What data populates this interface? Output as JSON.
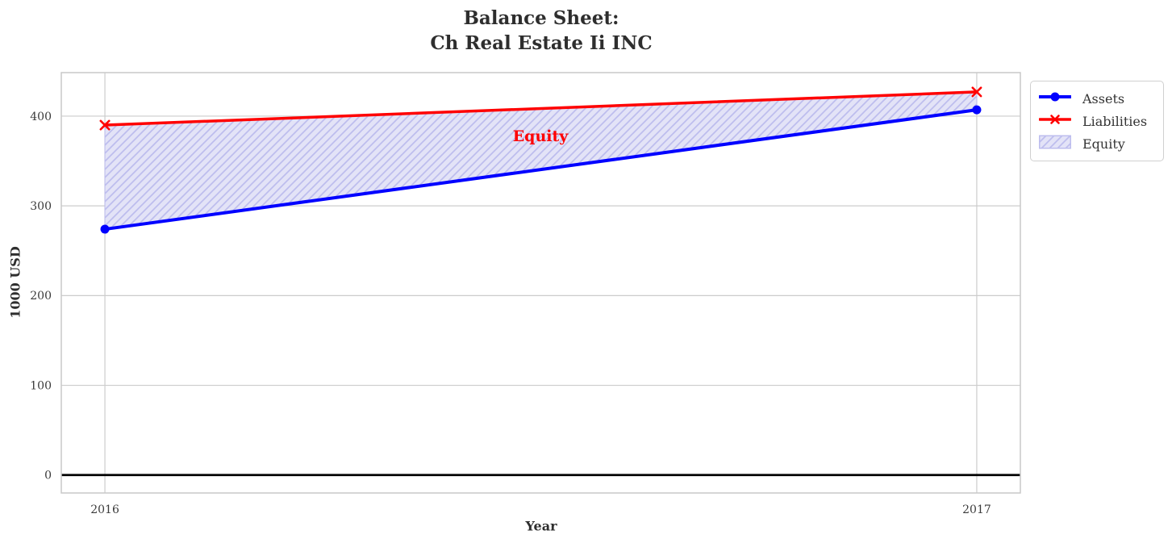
{
  "title": {
    "line1": "Balance Sheet:",
    "line2": "Ch Real Estate Ii INC"
  },
  "y_axis": {
    "label": "1000 USD",
    "tick_labels": [
      "0",
      "100",
      "200",
      "300",
      "400"
    ],
    "tick_values": [
      0,
      100,
      200,
      300,
      400
    ]
  },
  "x_axis": {
    "label": "Year",
    "tick_labels": [
      "2016",
      "2017"
    ],
    "tick_values": [
      2016,
      2017
    ]
  },
  "annotation": {
    "label": "Equity",
    "color": "#ff0000"
  },
  "legend": {
    "items": [
      {
        "label": "Assets",
        "glyph": "line-circle",
        "color": "#0000ff"
      },
      {
        "label": "Liabilities",
        "glyph": "line-x",
        "color": "#ff0000"
      },
      {
        "label": "Equity",
        "glyph": "hatch-patch",
        "color": "#bdbdee"
      }
    ]
  },
  "colors": {
    "assets_line": "#0000ff",
    "liabilities_line": "#ff0000",
    "equity_fill": "#e3e3f7",
    "equity_hatch": "#bdbdee",
    "gridline": "#cccccc",
    "spine": "#c9c9c9",
    "zero_line": "#000000",
    "text": "#2e2e2e"
  },
  "chart_data": {
    "type": "line",
    "title": "Balance Sheet:\nCh Real Estate Ii INC",
    "xlabel": "Year",
    "ylabel": "1000 USD",
    "x": [
      2016,
      2017
    ],
    "series": [
      {
        "name": "Assets",
        "values": [
          274,
          407
        ],
        "color": "#0000ff",
        "marker": "circle",
        "line_width": 4
      },
      {
        "name": "Liabilities",
        "values": [
          390,
          427
        ],
        "color": "#ff0000",
        "marker": "x",
        "line_width": 3.5
      }
    ],
    "fill_between": {
      "name": "Equity",
      "upper_series": "Liabilities",
      "lower_series": "Assets",
      "facecolor": "#e3e3f7",
      "hatch": "//",
      "hatch_color": "#bdbdee"
    },
    "xlim": [
      2015.95,
      2017.05
    ],
    "ylim": [
      -20,
      448.5
    ],
    "yticks": [
      0,
      100,
      200,
      300,
      400
    ],
    "xticks": [
      2016,
      2017
    ],
    "grid": true,
    "zero_line": true,
    "legend_position": "outside-upper-right"
  }
}
